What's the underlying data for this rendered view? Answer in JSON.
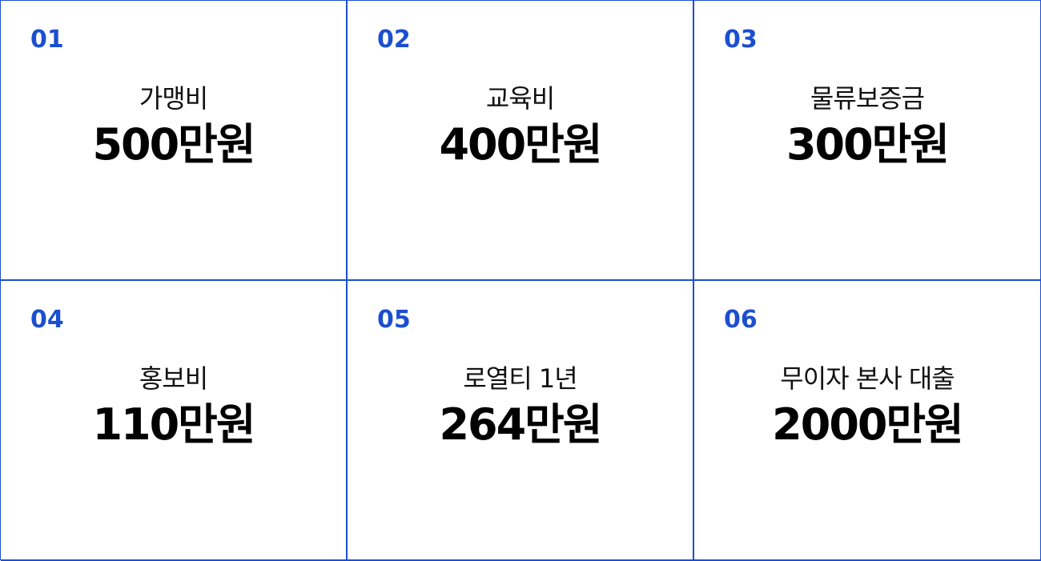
{
  "colors": {
    "accent": "#1c4fd0",
    "text": "#000000",
    "background": "#ffffff"
  },
  "items": [
    {
      "number": "01",
      "label": "가맹비",
      "amount": "500만원"
    },
    {
      "number": "02",
      "label": "교육비",
      "amount": "400만원"
    },
    {
      "number": "03",
      "label": "물류보증금",
      "amount": "300만원"
    },
    {
      "number": "04",
      "label": "홍보비",
      "amount": "110만원"
    },
    {
      "number": "05",
      "label": "로열티 1년",
      "amount": "264만원"
    },
    {
      "number": "06",
      "label": "무이자 본사 대출",
      "amount": "2000만원"
    }
  ]
}
